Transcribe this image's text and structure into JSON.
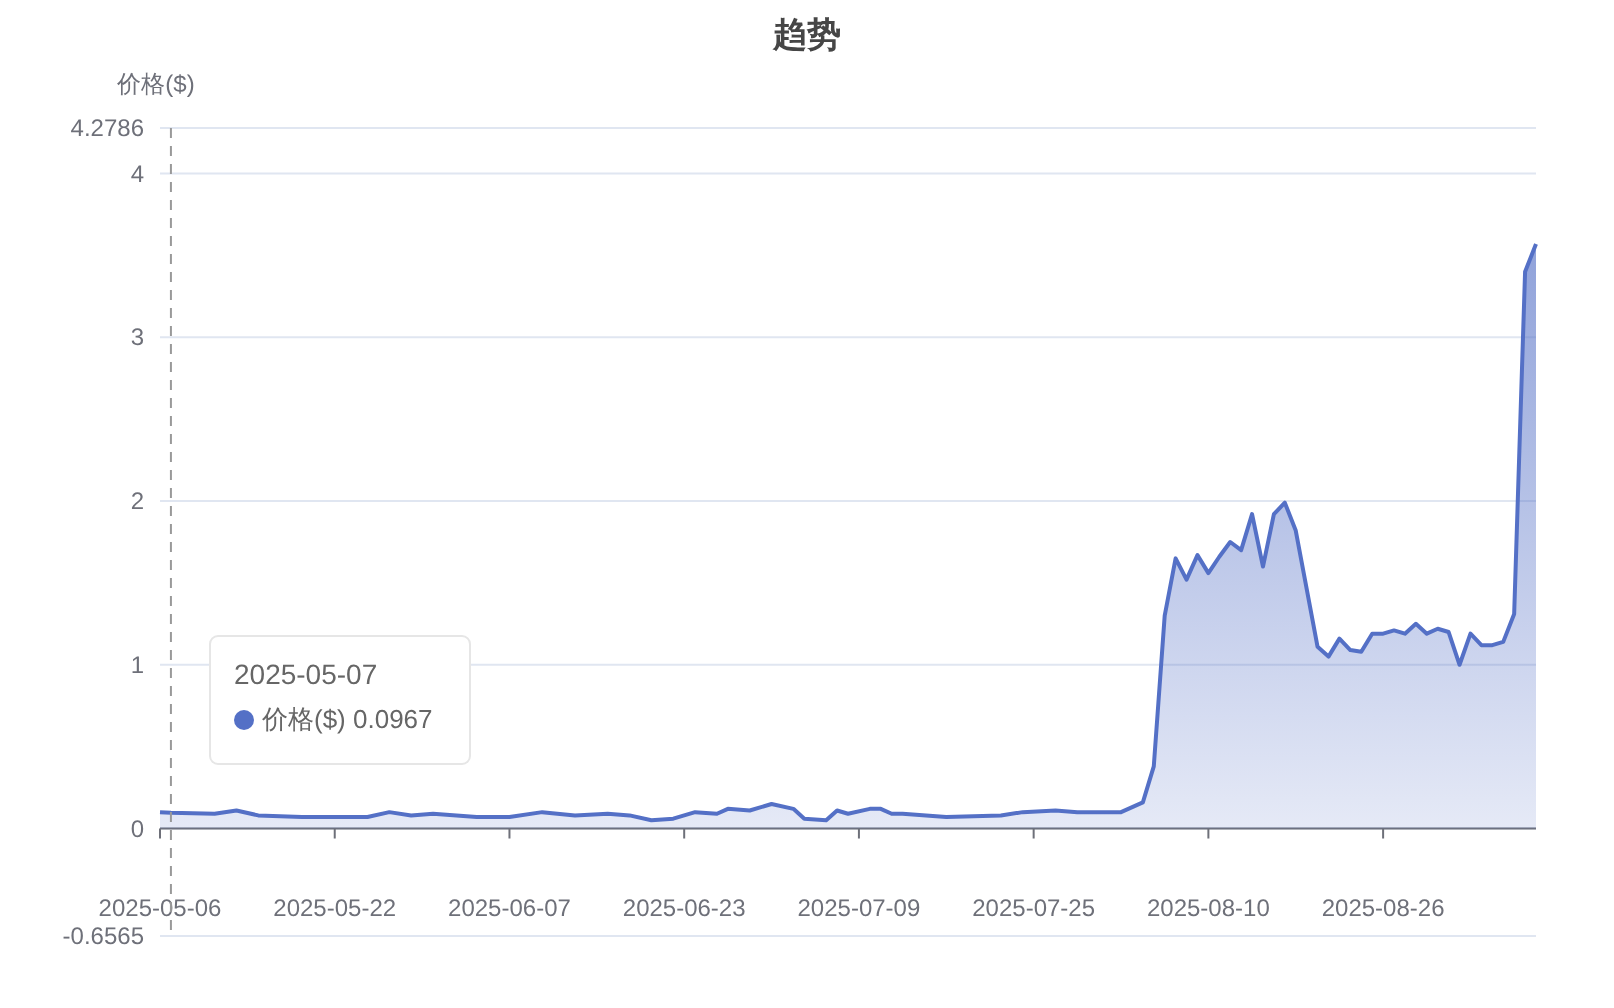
{
  "chart_data": {
    "type": "area",
    "title": "趋势",
    "ylabel": "价格($)",
    "x": [
      "2025-05-06",
      "2025-05-07",
      "2025-05-11",
      "2025-05-13",
      "2025-05-15",
      "2025-05-19",
      "2025-05-23",
      "2025-05-25",
      "2025-05-27",
      "2025-05-29",
      "2025-05-31",
      "2025-06-04",
      "2025-06-07",
      "2025-06-10",
      "2025-06-13",
      "2025-06-16",
      "2025-06-18",
      "2025-06-20",
      "2025-06-22",
      "2025-06-24",
      "2025-06-26",
      "2025-06-27",
      "2025-06-29",
      "2025-07-01",
      "2025-07-03",
      "2025-07-04",
      "2025-07-06",
      "2025-07-07",
      "2025-07-08",
      "2025-07-10",
      "2025-07-11",
      "2025-07-12",
      "2025-07-13",
      "2025-07-17",
      "2025-07-22",
      "2025-07-24",
      "2025-07-27",
      "2025-07-29",
      "2025-08-02",
      "2025-08-04",
      "2025-08-05",
      "2025-08-06",
      "2025-08-07",
      "2025-08-08",
      "2025-08-09",
      "2025-08-10",
      "2025-08-11",
      "2025-08-12",
      "2025-08-13",
      "2025-08-14",
      "2025-08-15",
      "2025-08-16",
      "2025-08-17",
      "2025-08-18",
      "2025-08-20",
      "2025-08-21",
      "2025-08-22",
      "2025-08-23",
      "2025-08-24",
      "2025-08-25",
      "2025-08-26",
      "2025-08-27",
      "2025-08-28",
      "2025-08-29",
      "2025-08-30",
      "2025-08-31",
      "2025-09-01",
      "2025-09-02",
      "2025-09-03",
      "2025-09-04",
      "2025-09-05",
      "2025-09-06",
      "2025-09-07",
      "2025-09-08",
      "2025-09-09"
    ],
    "series": [
      {
        "color": "#5470c6",
        "values": [
          0.1,
          0.0967,
          0.09,
          0.11,
          0.08,
          0.07,
          0.07,
          0.07,
          0.1,
          0.08,
          0.09,
          0.07,
          0.07,
          0.1,
          0.08,
          0.09,
          0.08,
          0.05,
          0.06,
          0.1,
          0.09,
          0.12,
          0.11,
          0.15,
          0.12,
          0.06,
          0.05,
          0.11,
          0.09,
          0.12,
          0.12,
          0.09,
          0.09,
          0.07,
          0.08,
          0.1,
          0.11,
          0.1,
          0.1,
          0.16,
          0.38,
          1.3,
          1.65,
          1.52,
          1.67,
          1.56,
          1.66,
          1.75,
          1.7,
          1.92,
          1.6,
          1.92,
          1.99,
          1.82,
          1.11,
          1.05,
          1.16,
          1.09,
          1.08,
          1.19,
          1.19,
          1.21,
          1.19,
          1.25,
          1.19,
          1.22,
          1.2,
          1.0,
          1.19,
          1.12,
          1.12,
          1.14,
          1.31,
          3.4,
          3.57
        ]
      }
    ],
    "xlim": [
      "2025-05-06",
      "2025-09-09"
    ],
    "xticks": [
      "2025-05-06",
      "2025-05-22",
      "2025-06-07",
      "2025-06-23",
      "2025-07-09",
      "2025-07-25",
      "2025-08-10",
      "2025-08-26"
    ],
    "ylim": [
      -0.6565,
      4.2786
    ],
    "yticks": [
      -0.6565,
      0,
      1,
      2,
      3,
      4,
      4.2786
    ],
    "grid": "y",
    "marker": "none",
    "line_style": "solid",
    "ref_lines": [
      {
        "axis": "x",
        "value": "2025-05-07",
        "color": "#999999",
        "line_style": "dashed"
      }
    ],
    "annotations": [
      "2025-05-07\n价格($) 0.0967"
    ]
  }
}
